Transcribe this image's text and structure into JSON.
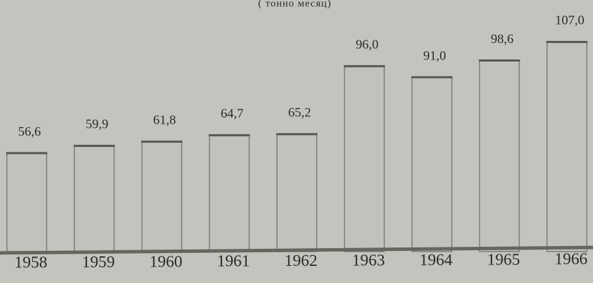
{
  "chart_data": {
    "type": "bar",
    "subtitle": "( тонно месяц)",
    "categories": [
      "1958",
      "1959",
      "1960",
      "1961",
      "1962",
      "1963",
      "1964",
      "1965",
      "1966"
    ],
    "values": [
      56.6,
      59.9,
      61.8,
      64.7,
      65.2,
      96.0,
      91.0,
      98.6,
      107.0
    ],
    "value_labels": [
      "56,6",
      "59,9",
      "61,8",
      "64,7",
      "65,2",
      "96,0",
      "91,0",
      "98,6",
      "107,0"
    ],
    "color": "#c2c2bc",
    "ylim": [
      12,
      126
    ]
  }
}
